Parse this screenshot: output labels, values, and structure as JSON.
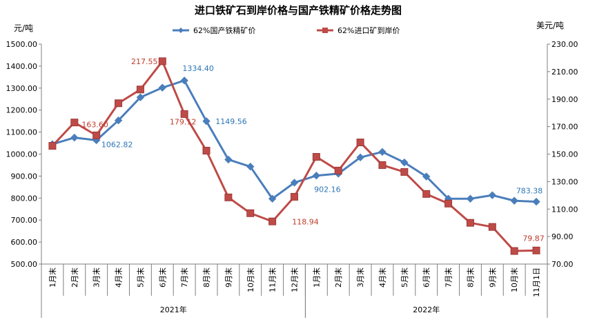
{
  "chart_data": {
    "type": "line",
    "title": "进口铁矿石到岸价格与国产铁精矿价格走势图",
    "y_left_unit": "元/吨",
    "y_right_unit": "美元/吨",
    "y_left_ticks": [
      "500.00",
      "600.00",
      "700.00",
      "800.00",
      "900.00",
      "1000.00",
      "1100.00",
      "1200.00",
      "1300.00",
      "1400.00",
      "1500.00"
    ],
    "y_right_ticks": [
      "70.00",
      "90.00",
      "110.00",
      "130.00",
      "150.00",
      "170.00",
      "190.00",
      "210.00",
      "230.00"
    ],
    "ylim_left": [
      500,
      1500
    ],
    "ylim_right": [
      70,
      230
    ],
    "categories": [
      "1月末",
      "2月末",
      "3月末",
      "4月末",
      "5月末",
      "6月末",
      "7月末",
      "8月末",
      "9月末",
      "10月末",
      "11月末",
      "12月末",
      "1月末",
      "2月末",
      "3月末",
      "4月末",
      "5月末",
      "6月末",
      "7月末",
      "8月末",
      "9月末",
      "10月末",
      "11月1日"
    ],
    "year_groups": [
      {
        "label": "2021年",
        "start": 0,
        "count": 12
      },
      {
        "label": "2022年",
        "start": 12,
        "count": 11
      }
    ],
    "grid": false,
    "legend_position": "top",
    "series": [
      {
        "name": "62%国产铁精矿价",
        "axis": "left",
        "color": "#4a7ebb",
        "marker": "diamond",
        "values": [
          1045,
          1075,
          1062.82,
          1153,
          1258,
          1302,
          1334.4,
          1149.56,
          975,
          943,
          797,
          870,
          902.16,
          911,
          985,
          1010,
          962,
          898,
          797,
          797,
          813,
          788,
          783.38
        ]
      },
      {
        "name": "62%进口矿到岸价",
        "axis": "right",
        "color": "#be4b48",
        "marker": "square",
        "values": [
          156,
          173,
          163.6,
          187,
          197,
          217.55,
          179.12,
          152.5,
          118.5,
          107,
          101,
          118.94,
          148,
          138,
          158.5,
          142,
          137,
          121,
          114,
          100,
          97,
          79.5,
          79.87
        ]
      }
    ],
    "annotations": [
      {
        "series": 0,
        "index": 2,
        "text": "1062.82"
      },
      {
        "series": 0,
        "index": 6,
        "text": "1334.40"
      },
      {
        "series": 0,
        "index": 7,
        "text": "1149.56"
      },
      {
        "series": 0,
        "index": 12,
        "text": "902.16"
      },
      {
        "series": 0,
        "index": 22,
        "text": "783.38"
      },
      {
        "series": 1,
        "index": 2,
        "text": "163.60"
      },
      {
        "series": 1,
        "index": 5,
        "text": "217.55"
      },
      {
        "series": 1,
        "index": 6,
        "text": "179.12"
      },
      {
        "series": 1,
        "index": 11,
        "text": "118.94"
      },
      {
        "series": 1,
        "index": 22,
        "text": "79.87"
      }
    ]
  }
}
